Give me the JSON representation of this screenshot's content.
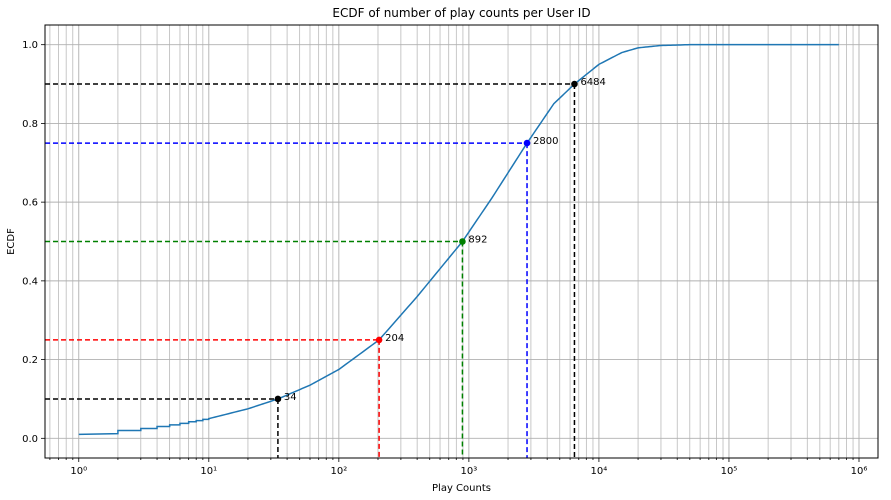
{
  "chart_data": {
    "type": "line",
    "title": "ECDF of number of play counts per User ID",
    "xlabel": "Play Counts",
    "ylabel": "ECDF",
    "xscale": "log",
    "xlim": [
      0.55,
      1400000
    ],
    "ylim": [
      -0.05,
      1.05
    ],
    "grid": true,
    "x_tick_labels": [
      {
        "value": 1,
        "label": "10⁰"
      },
      {
        "value": 10,
        "label": "10¹"
      },
      {
        "value": 100,
        "label": "10²"
      },
      {
        "value": 1000,
        "label": "10³"
      },
      {
        "value": 10000,
        "label": "10⁴"
      },
      {
        "value": 100000,
        "label": "10⁵"
      },
      {
        "value": 1000000,
        "label": "10⁶"
      }
    ],
    "y_tick_labels": [
      {
        "value": 0.0,
        "label": "0.0"
      },
      {
        "value": 0.2,
        "label": "0.2"
      },
      {
        "value": 0.4,
        "label": "0.4"
      },
      {
        "value": 0.6,
        "label": "0.6"
      },
      {
        "value": 0.8,
        "label": "0.8"
      },
      {
        "value": 1.0,
        "label": "1.0"
      }
    ],
    "series": [
      {
        "color": "#1f77b4",
        "step_points": [
          [
            1,
            0.01
          ],
          [
            2,
            0.012
          ],
          [
            2,
            0.02
          ],
          [
            3,
            0.02
          ],
          [
            3,
            0.025
          ],
          [
            4,
            0.025
          ],
          [
            4,
            0.03
          ],
          [
            5,
            0.03
          ],
          [
            5,
            0.034
          ],
          [
            6,
            0.034
          ],
          [
            6,
            0.038
          ],
          [
            7,
            0.038
          ],
          [
            7,
            0.042
          ],
          [
            8,
            0.042
          ],
          [
            8,
            0.045
          ],
          [
            9,
            0.045
          ],
          [
            9,
            0.048
          ],
          [
            10,
            0.048
          ]
        ],
        "smooth_points": [
          [
            10,
            0.05
          ],
          [
            20,
            0.075
          ],
          [
            34,
            0.1
          ],
          [
            60,
            0.135
          ],
          [
            100,
            0.175
          ],
          [
            204,
            0.25
          ],
          [
            400,
            0.36
          ],
          [
            892,
            0.5
          ],
          [
            1500,
            0.61
          ],
          [
            2800,
            0.75
          ],
          [
            4500,
            0.85
          ],
          [
            6484,
            0.9
          ],
          [
            10000,
            0.95
          ],
          [
            15000,
            0.98
          ],
          [
            20000,
            0.992
          ],
          [
            30000,
            0.998
          ],
          [
            50000,
            1.0
          ],
          [
            700000,
            1.0
          ]
        ]
      }
    ],
    "markers": [
      {
        "x": 34,
        "y": 0.1,
        "label": "34",
        "color": "#000000"
      },
      {
        "x": 204,
        "y": 0.25,
        "label": "204",
        "color": "#ff0000"
      },
      {
        "x": 892,
        "y": 0.5,
        "label": "892",
        "color": "#008000"
      },
      {
        "x": 2800,
        "y": 0.75,
        "label": "2800",
        "color": "#0000ff"
      },
      {
        "x": 6484,
        "y": 0.9,
        "label": "6484",
        "color": "#000000"
      }
    ]
  }
}
